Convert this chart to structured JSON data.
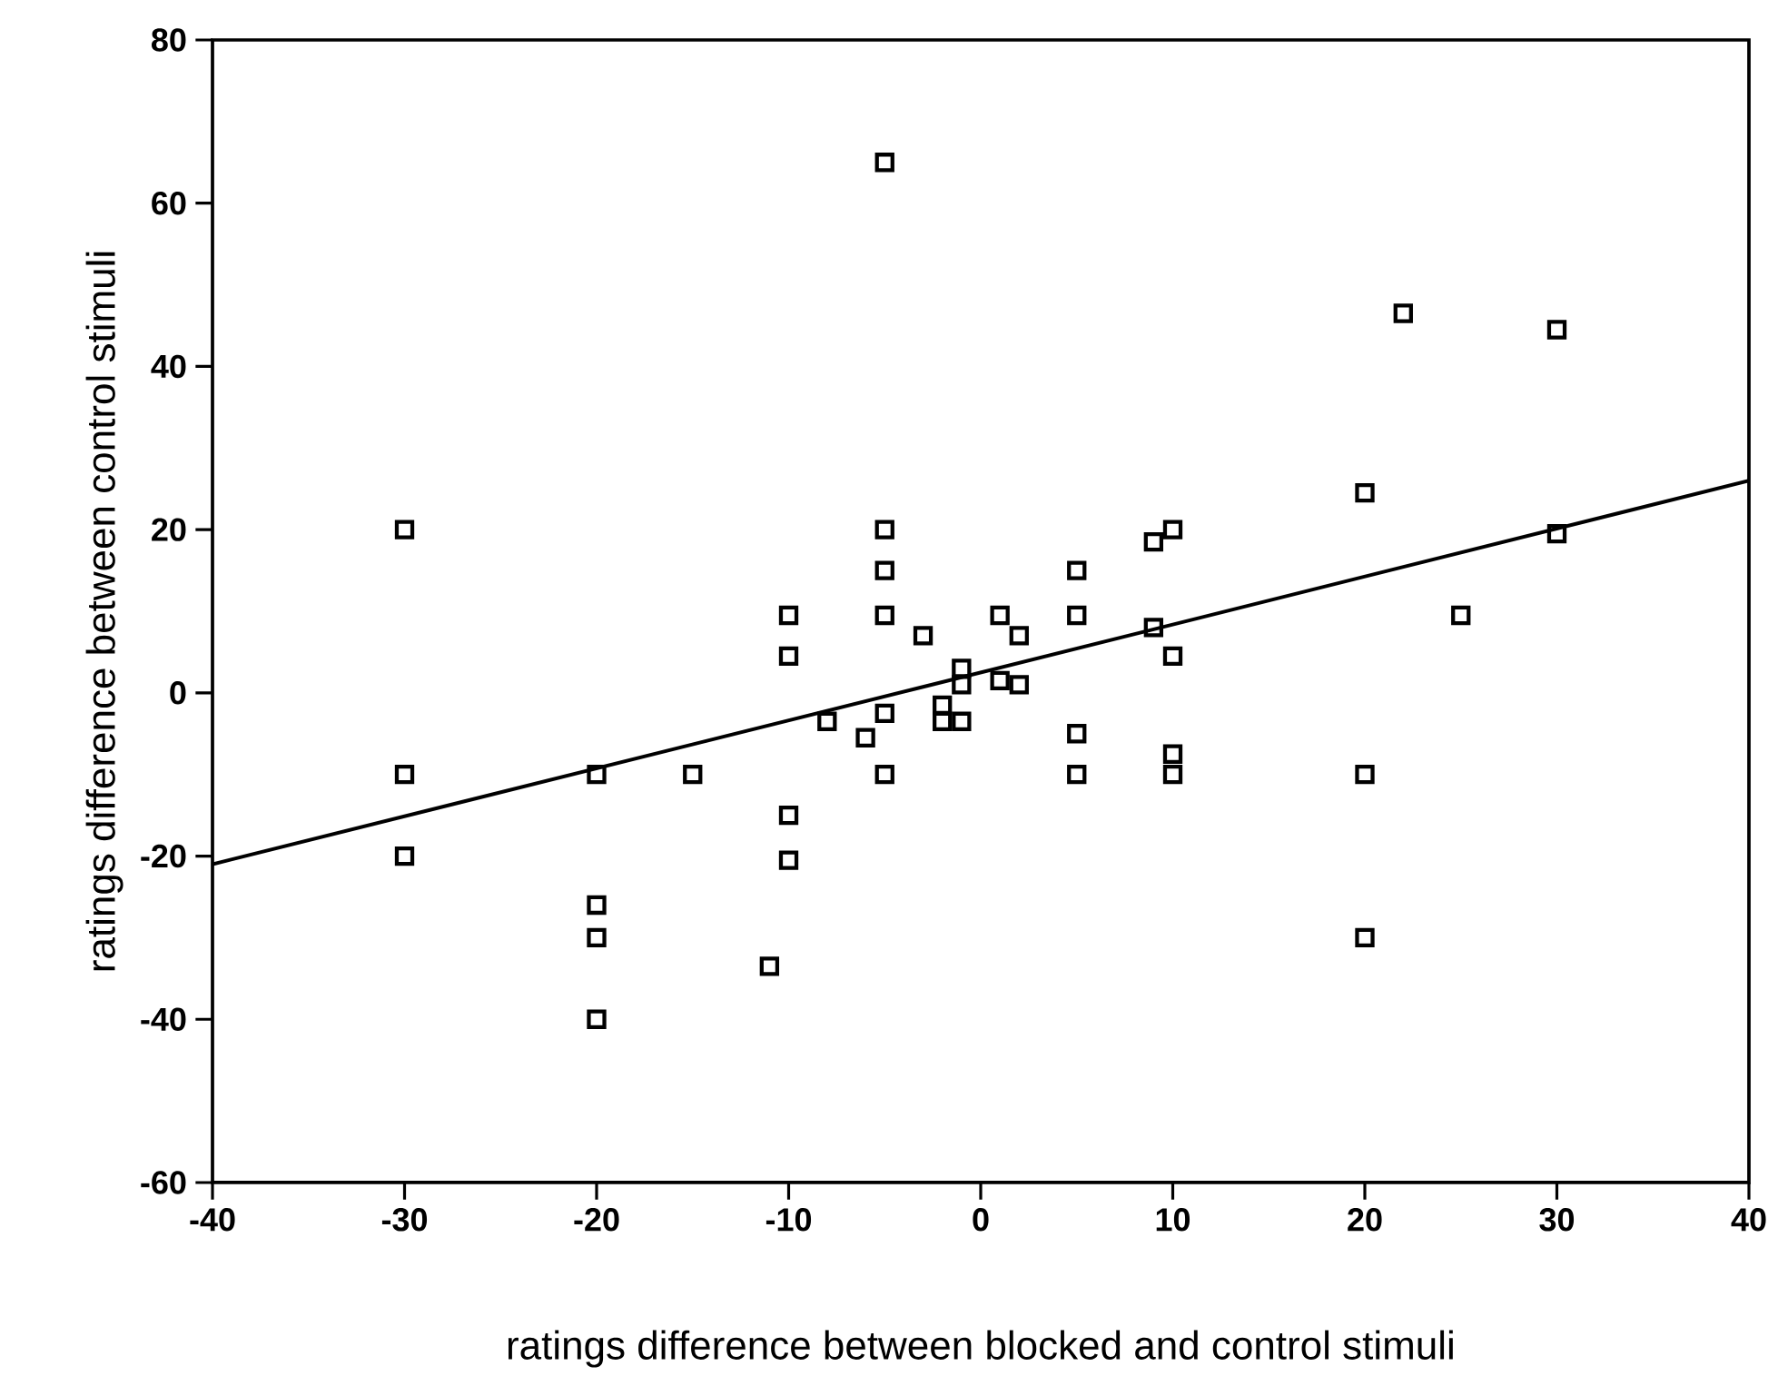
{
  "chart_data": {
    "type": "scatter",
    "xlabel": "ratings difference between blocked and control stimuli",
    "ylabel": "ratings difference between control stimuli",
    "xlim": [
      -40,
      40
    ],
    "ylim": [
      -60,
      80
    ],
    "xticks": [
      -40,
      -30,
      -20,
      -10,
      0,
      10,
      20,
      30,
      40
    ],
    "yticks": [
      -60,
      -40,
      -20,
      0,
      20,
      40,
      60,
      80
    ],
    "grid": false,
    "series": [
      {
        "marker": "square",
        "color": "#000000",
        "x": [
          -30,
          -30,
          -30,
          -20,
          -20,
          -20,
          -20,
          -15,
          -11,
          -10,
          -10,
          -10,
          -10,
          -8,
          -6,
          -5,
          -5,
          -5,
          -5,
          -5,
          -5,
          -3,
          -2,
          -2,
          -1,
          -1,
          -1,
          1,
          1,
          2,
          2,
          5,
          5,
          5,
          5,
          9,
          10,
          9,
          10,
          10,
          10,
          20,
          22,
          30,
          30,
          25,
          20,
          20
        ],
        "values": [
          20,
          -10,
          -20,
          -10,
          -26,
          -30,
          -40,
          -10,
          -33.5,
          9.5,
          4.5,
          -15,
          -20.5,
          -3.5,
          -5.5,
          65,
          20,
          15,
          9.5,
          -2.5,
          -10,
          7,
          -1.5,
          -3.5,
          3,
          1,
          -3.5,
          9.5,
          1.5,
          7,
          1,
          15,
          9.5,
          -5,
          -10,
          18.5,
          20,
          8,
          4.5,
          -7.5,
          -10,
          24.5,
          46.5,
          44.5,
          19.5,
          9.5,
          -10,
          -30
        ]
      },
      {
        "type": "line",
        "marker": "none",
        "line_style": "solid",
        "color": "#000000",
        "x": [
          -40,
          40
        ],
        "values": [
          -21,
          26
        ]
      }
    ]
  }
}
